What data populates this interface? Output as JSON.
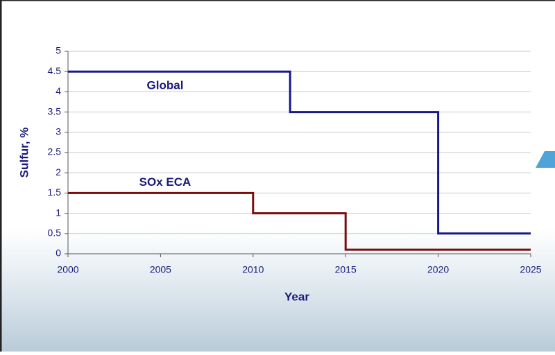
{
  "chart_data": {
    "type": "line",
    "step": true,
    "x_label": "Year",
    "y_label": "Sulfur, %",
    "xlim": [
      2000,
      2025
    ],
    "xticks": [
      2000,
      2005,
      2010,
      2015,
      2020,
      2025
    ],
    "ylim": [
      0,
      5
    ],
    "yticks": [
      0,
      0.5,
      1,
      1.5,
      2,
      2.5,
      3,
      3.5,
      4,
      4.5,
      5
    ],
    "grid": true,
    "series": [
      {
        "name": "Global",
        "color": "#18188a",
        "x": [
          2000,
          2012,
          2012,
          2020,
          2020,
          2025
        ],
        "values": [
          4.5,
          4.5,
          3.5,
          3.5,
          0.5,
          0.5
        ]
      },
      {
        "name": "SOx ECA",
        "color": "#7a0c0c",
        "x": [
          2000,
          2010,
          2010,
          2015,
          2015,
          2025
        ],
        "values": [
          1.5,
          1.5,
          1,
          1,
          0.1,
          0.1
        ]
      }
    ]
  }
}
